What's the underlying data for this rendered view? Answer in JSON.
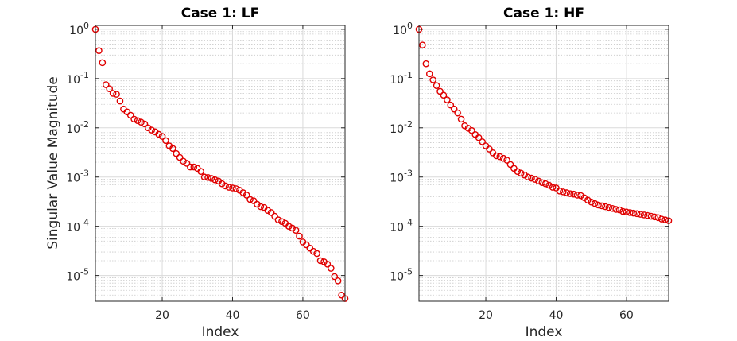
{
  "colors": {
    "marker": "#e00000",
    "axis": "#262626"
  },
  "ylabel": "Singular Value Magnitude",
  "chart_data": [
    {
      "type": "scatter",
      "title": "Case 1: LF",
      "xlabel": "Index",
      "ylabel": "Singular Value Magnitude",
      "xlim": [
        1,
        72
      ],
      "ylim": [
        3e-06,
        1.2
      ],
      "yscale": "log",
      "grid": true,
      "xticks": [
        20,
        40,
        60
      ],
      "yticks": [
        1e-05,
        0.0001,
        0.001,
        0.01,
        0.1,
        1
      ],
      "ytick_exponents": [
        "-5",
        "-4",
        "-3",
        "-2",
        "-1",
        "0"
      ],
      "series": [
        {
          "marker": "open-circle",
          "color": "#e00000",
          "x": [
            1,
            2,
            3,
            4,
            5,
            6,
            7,
            8,
            9,
            10,
            11,
            12,
            13,
            14,
            15,
            16,
            17,
            18,
            19,
            20,
            21,
            22,
            23,
            24,
            25,
            26,
            27,
            28,
            29,
            30,
            31,
            32,
            33,
            34,
            35,
            36,
            37,
            38,
            39,
            40,
            41,
            42,
            43,
            44,
            45,
            46,
            47,
            48,
            49,
            50,
            51,
            52,
            53,
            54,
            55,
            56,
            57,
            58,
            59,
            60,
            61,
            62,
            63,
            64,
            65,
            66,
            67,
            68,
            69,
            70,
            71,
            72
          ],
          "y": [
            1.0,
            0.37,
            0.21,
            0.075,
            0.062,
            0.05,
            0.048,
            0.035,
            0.024,
            0.021,
            0.018,
            0.015,
            0.014,
            0.013,
            0.012,
            0.01,
            0.009,
            0.0083,
            0.0074,
            0.0067,
            0.0055,
            0.0043,
            0.0038,
            0.003,
            0.0025,
            0.0021,
            0.0019,
            0.0016,
            0.0016,
            0.0015,
            0.0013,
            0.001,
            0.00098,
            0.00094,
            0.00088,
            0.00083,
            0.00073,
            0.00066,
            0.00062,
            0.0006,
            0.00058,
            0.00054,
            0.00048,
            0.00043,
            0.00035,
            0.00033,
            0.00028,
            0.00025,
            0.00024,
            0.00021,
            0.00019,
            0.00016,
            0.000135,
            0.000125,
            0.000115,
            0.0001,
            9.2e-05,
            8.3e-05,
            6.3e-05,
            4.8e-05,
            4.2e-05,
            3.6e-05,
            3.1e-05,
            2.8e-05,
            2e-05,
            1.9e-05,
            1.7e-05,
            1.4e-05,
            9.5e-06,
            7.8e-06,
            4e-06,
            3.4e-06
          ]
        }
      ]
    },
    {
      "type": "scatter",
      "title": "Case 1: HF",
      "xlabel": "Index",
      "ylabel": "",
      "xlim": [
        1,
        72
      ],
      "ylim": [
        3e-06,
        1.2
      ],
      "yscale": "log",
      "grid": true,
      "xticks": [
        20,
        40,
        60
      ],
      "yticks": [
        1e-05,
        0.0001,
        0.001,
        0.01,
        0.1,
        1
      ],
      "ytick_exponents": [
        "-5",
        "-4",
        "-3",
        "-2",
        "-1",
        "0"
      ],
      "series": [
        {
          "marker": "open-circle",
          "color": "#e00000",
          "x": [
            1,
            2,
            3,
            4,
            5,
            6,
            7,
            8,
            9,
            10,
            11,
            12,
            13,
            14,
            15,
            16,
            17,
            18,
            19,
            20,
            21,
            22,
            23,
            24,
            25,
            26,
            27,
            28,
            29,
            30,
            31,
            32,
            33,
            34,
            35,
            36,
            37,
            38,
            39,
            40,
            41,
            42,
            43,
            44,
            45,
            46,
            47,
            48,
            49,
            50,
            51,
            52,
            53,
            54,
            55,
            56,
            57,
            58,
            59,
            60,
            61,
            62,
            63,
            64,
            65,
            66,
            67,
            68,
            69,
            70,
            71,
            72
          ],
          "y": [
            1.0,
            0.48,
            0.2,
            0.125,
            0.094,
            0.072,
            0.055,
            0.046,
            0.037,
            0.029,
            0.024,
            0.02,
            0.015,
            0.011,
            0.0098,
            0.0088,
            0.0073,
            0.0063,
            0.0052,
            0.0043,
            0.0037,
            0.0031,
            0.0027,
            0.0026,
            0.0024,
            0.0022,
            0.0018,
            0.0015,
            0.0013,
            0.0012,
            0.0011,
            0.001,
            0.00095,
            0.0009,
            0.00083,
            0.00077,
            0.00073,
            0.00068,
            0.00062,
            0.0006,
            0.00052,
            0.0005,
            0.00048,
            0.00046,
            0.00045,
            0.00043,
            0.00042,
            0.00038,
            0.00034,
            0.00031,
            0.00029,
            0.00027,
            0.00026,
            0.00025,
            0.00024,
            0.00023,
            0.00022,
            0.000215,
            0.0002,
            0.000195,
            0.00019,
            0.000185,
            0.00018,
            0.000175,
            0.00017,
            0.000165,
            0.00016,
            0.000155,
            0.00015,
            0.00014,
            0.000135,
            0.00013
          ]
        }
      ]
    }
  ]
}
